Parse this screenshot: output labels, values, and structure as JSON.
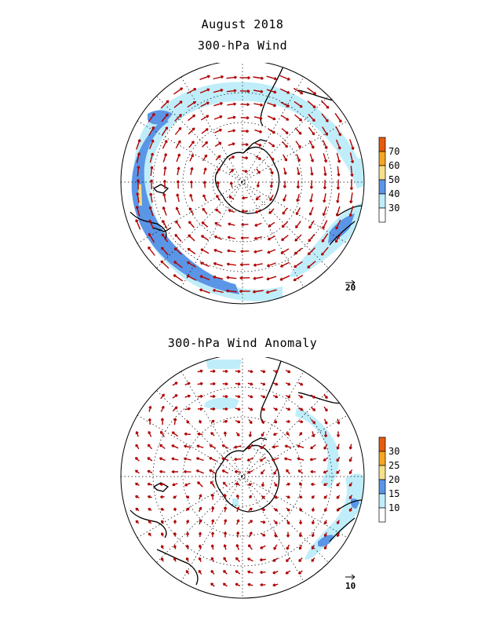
{
  "top": {
    "title_line1": "August 2018",
    "title_line2": "300-hPa Wind",
    "colorbar": {
      "labels": [
        "70",
        "60",
        "50",
        "40",
        "30"
      ],
      "colors": [
        "#e85a10",
        "#f5a623",
        "#f7e08a",
        "#5b95e6",
        "#bfeefa",
        "#ffffff"
      ]
    },
    "ref_vector": "20"
  },
  "bottom": {
    "title": "300-hPa Wind Anomaly",
    "colorbar": {
      "labels": [
        "30",
        "25",
        "20",
        "15",
        "10"
      ],
      "colors": [
        "#e85a10",
        "#f5a623",
        "#f7e08a",
        "#5b95e6",
        "#bfeefa",
        "#ffffff"
      ]
    },
    "ref_vector": "10"
  },
  "colors": {
    "arrow": "#b00000",
    "coast": "#000000",
    "light_shade": "#bfeefa",
    "dark_shade": "#5b95e6",
    "yellow_shade": "#f7e08a"
  }
}
